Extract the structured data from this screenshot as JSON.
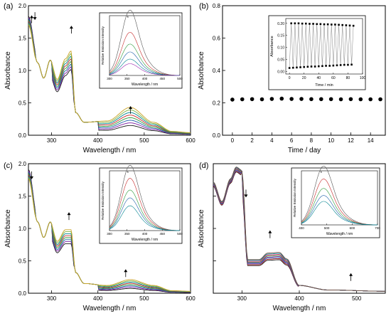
{
  "chart_data": [
    {
      "type": "line",
      "panel_label": "(a)",
      "xlabel": "Wavelength / nm",
      "ylabel": "Absorbance",
      "xlim": [
        250,
        600
      ],
      "ylim": [
        0,
        2.0
      ],
      "xticks": [
        300,
        400,
        500,
        600
      ],
      "yticks": [
        0.0,
        0.5,
        1.0,
        1.5,
        2.0
      ],
      "series_style": [
        {
          "color": "#1a1a1a"
        },
        {
          "color": "#7b1fa2"
        },
        {
          "color": "#1e5fa8"
        },
        {
          "color": "#2e9a3a"
        },
        {
          "color": "#c62828"
        },
        {
          "color": "#00838f"
        },
        {
          "color": "#7cb342"
        },
        {
          "color": "#c9a227"
        }
      ],
      "key_points": [
        {
          "x": 250,
          "y": 1.75
        },
        {
          "x": 270,
          "y": 1.12
        },
        {
          "x": 283,
          "y": 0.88
        },
        {
          "x": 297,
          "y": 1.16
        },
        {
          "x": 312,
          "y": 0.86
        },
        {
          "x": 330,
          "y": 1.18
        },
        {
          "x": 342,
          "y": 1.3
        },
        {
          "x": 352,
          "y": 0.35
        },
        {
          "x": 370,
          "y": 0.2
        },
        {
          "x": 420,
          "y": 0.22
        },
        {
          "x": 470,
          "y": 0.43
        },
        {
          "x": 520,
          "y": 0.2
        },
        {
          "x": 560,
          "y": 0.06
        },
        {
          "x": 600,
          "y": 0.04
        }
      ],
      "arrows": [
        "up",
        "up",
        "down",
        "up"
      ],
      "inset": {
        "xlabel": "Wavelength / nm",
        "ylabel": "Relative Emission Intensity",
        "xlim": [
          300,
          500
        ],
        "xticks": [
          300,
          350,
          400,
          450,
          500
        ],
        "annotation": "*",
        "peak_levels": [
          1.0,
          0.66,
          0.48,
          0.36,
          0.25,
          0.18
        ]
      }
    },
    {
      "type": "scatter",
      "panel_label": "(b)",
      "xlabel": "Time / day",
      "ylabel": "Absorbance",
      "xlim": [
        -1,
        15.5
      ],
      "ylim": [
        0,
        0.8
      ],
      "xticks": [
        0,
        2,
        4,
        6,
        8,
        10,
        12,
        14
      ],
      "yticks": [
        0.0,
        0.2,
        0.4,
        0.6,
        0.8
      ],
      "x": [
        0,
        1,
        2,
        3,
        4,
        5,
        6,
        7,
        8,
        9,
        10,
        11,
        12,
        13,
        14,
        15
      ],
      "y": [
        0.22,
        0.222,
        0.223,
        0.222,
        0.224,
        0.226,
        0.224,
        0.224,
        0.223,
        0.223,
        0.223,
        0.222,
        0.223,
        0.222,
        0.222,
        0.222
      ],
      "inset": {
        "xlabel": "Time / min",
        "ylabel": "Absorbance",
        "xlim": [
          -5,
          100
        ],
        "ylim": [
          -0.01,
          0.22
        ],
        "xticks": [
          0,
          20,
          40,
          60,
          80,
          100
        ],
        "yticks": [
          0.0,
          0.05,
          0.1,
          0.15,
          0.2
        ],
        "x": [
          0,
          5,
          10,
          15,
          20,
          25,
          30,
          35,
          40,
          45,
          50,
          55,
          60,
          65,
          70,
          75,
          80,
          85
        ],
        "high": [
          0.2,
          0.2,
          0.2,
          0.199,
          0.199,
          0.198,
          0.198,
          0.197,
          0.197,
          0.196,
          0.196,
          0.195,
          0.195,
          0.194,
          0.193,
          0.192,
          0.191,
          0.19
        ],
        "low": [
          0.015,
          0.016,
          0.017,
          0.018,
          0.019,
          0.02,
          0.021,
          0.021,
          0.022,
          0.023,
          0.024,
          0.024,
          0.025,
          0.026,
          0.027,
          0.028,
          0.028,
          0.029
        ]
      }
    },
    {
      "type": "line",
      "panel_label": "(c)",
      "xlabel": "Wavelength / nm",
      "ylabel": "Absorbance",
      "xlim": [
        250,
        600
      ],
      "ylim": [
        0,
        2.0
      ],
      "xticks": [
        300,
        400,
        500,
        600
      ],
      "yticks": [
        0.0,
        0.5,
        1.0,
        1.5,
        2.0
      ],
      "series_style": [
        {
          "color": "#1a1a1a"
        },
        {
          "color": "#7b1fa2"
        },
        {
          "color": "#1e5fa8"
        },
        {
          "color": "#2e9a3a"
        },
        {
          "color": "#c62828"
        },
        {
          "color": "#00838f"
        },
        {
          "color": "#7cb342"
        },
        {
          "color": "#c9a227"
        }
      ],
      "key_points": [
        {
          "x": 250,
          "y": 1.82
        },
        {
          "x": 270,
          "y": 1.1
        },
        {
          "x": 283,
          "y": 0.86
        },
        {
          "x": 297,
          "y": 1.1
        },
        {
          "x": 312,
          "y": 0.8
        },
        {
          "x": 330,
          "y": 0.98
        },
        {
          "x": 342,
          "y": 0.98
        },
        {
          "x": 352,
          "y": 0.32
        },
        {
          "x": 370,
          "y": 0.15
        },
        {
          "x": 420,
          "y": 0.12
        },
        {
          "x": 470,
          "y": 0.21
        },
        {
          "x": 520,
          "y": 0.12
        },
        {
          "x": 560,
          "y": 0.04
        },
        {
          "x": 600,
          "y": 0.03
        }
      ],
      "arrows": [
        "down",
        "up",
        "up"
      ],
      "inset": {
        "xlabel": "Wavelength / nm",
        "ylabel": "Relative Emission Intensity",
        "xlim": [
          300,
          500
        ],
        "xticks": [
          300,
          350,
          400,
          450,
          500
        ],
        "annotation": "*",
        "peak_levels": [
          1.0,
          0.8,
          0.62,
          0.5,
          0.38
        ]
      }
    },
    {
      "type": "line",
      "panel_label": "(d)",
      "xlabel": "Wavelength / nm",
      "ylabel": "Absorbance",
      "xlim": [
        250,
        550
      ],
      "ylim": [
        0,
        2.0
      ],
      "xticks": [
        300,
        400,
        500
      ],
      "series_style": [
        {
          "color": "#1a1a1a"
        },
        {
          "color": "#c62828"
        },
        {
          "color": "#1e5fa8"
        },
        {
          "color": "#7b1fa2"
        },
        {
          "color": "#2e9a3a"
        },
        {
          "color": "#e91e63"
        },
        {
          "color": "#00838f"
        },
        {
          "color": "#6d4c41"
        }
      ],
      "key_points": [
        {
          "x": 250,
          "y": 1.7
        },
        {
          "x": 265,
          "y": 1.4
        },
        {
          "x": 280,
          "y": 1.75
        },
        {
          "x": 290,
          "y": 1.93
        },
        {
          "x": 300,
          "y": 1.88
        },
        {
          "x": 310,
          "y": 0.52
        },
        {
          "x": 330,
          "y": 0.52
        },
        {
          "x": 345,
          "y": 0.62
        },
        {
          "x": 365,
          "y": 0.63
        },
        {
          "x": 378,
          "y": 0.53
        },
        {
          "x": 400,
          "y": 0.12
        },
        {
          "x": 450,
          "y": 0.05
        },
        {
          "x": 550,
          "y": 0.03
        }
      ],
      "arrows": [
        "down",
        "up",
        "up"
      ],
      "inset": {
        "xlabel": "Wavelength / nm",
        "ylabel": "Relative Emission Intensity",
        "xlim": [
          400,
          700
        ],
        "xticks": [
          400,
          500,
          600,
          700
        ],
        "annotation": "*",
        "peak_levels": [
          1.0,
          0.78,
          0.62,
          0.5,
          0.4
        ]
      }
    }
  ]
}
